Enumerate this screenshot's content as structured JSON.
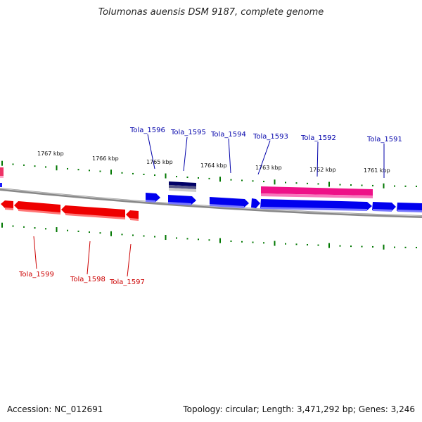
{
  "title": "Tolumonas auensis DSM 9187, complete genome",
  "footer": {
    "accession": "Accession: NC_012691",
    "topology": "Topology: circular; Length: 3,471,292 bp; Genes: 3,246"
  },
  "colors": {
    "forward_gene": "#0000ee",
    "reverse_gene": "#ee0000",
    "rna_feature": "#ee1188",
    "dark_feature": "#000066",
    "backbone": "#888888",
    "tick": "#007700"
  },
  "scale_labels": [
    "1767 kbp",
    "1766 kbp",
    "1765 kbp",
    "1764 kbp",
    "1763 kbp",
    "1762 kbp",
    "1761 kbp"
  ],
  "forward_labels": [
    "Tola_1596",
    "Tola_1595",
    "Tola_1594",
    "Tola_1593",
    "Tola_1592",
    "Tola_1591"
  ],
  "reverse_labels": [
    "Tola_1599",
    "Tola_1598",
    "Tola_1597"
  ]
}
